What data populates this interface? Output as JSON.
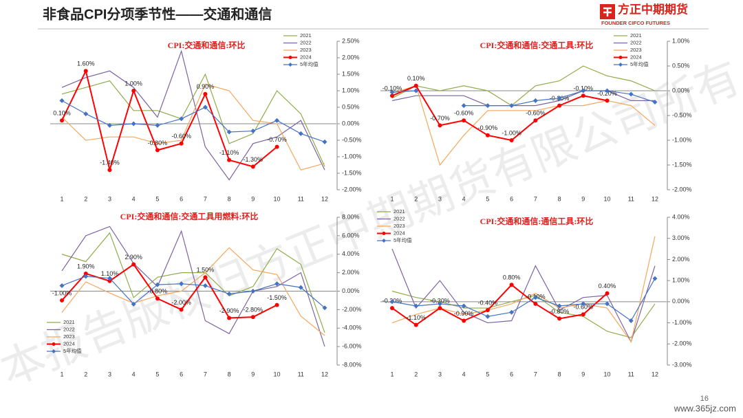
{
  "header": {
    "title": "非食品CPI分项季节性——交通和通信",
    "logo": "方正中期期货",
    "logo_sub": "FOUNDER CIFCO FUTURES"
  },
  "footer": {
    "page": "16",
    "site": "www.365jz.com"
  },
  "watermark": "本报告版权归方正中期期货有限公司所有",
  "chart_data": [
    {
      "type": "line",
      "title": "CPI:交通和通信:环比",
      "categories": [
        "1",
        "2",
        "3",
        "4",
        "5",
        "6",
        "7",
        "8",
        "9",
        "10",
        "11",
        "12"
      ],
      "ylim": [
        -2,
        2.5
      ],
      "yticks": [
        {
          "value": -2,
          "label": "-2.00%"
        },
        {
          "value": -1.5,
          "label": "-1.50%"
        },
        {
          "value": -1,
          "label": "-1.00%"
        },
        {
          "value": -0.5,
          "label": "-0.50%"
        },
        {
          "value": 0,
          "label": "0.00%"
        },
        {
          "value": 0.5,
          "label": "0.50%"
        },
        {
          "value": 1,
          "label": "1.00%"
        },
        {
          "value": 1.5,
          "label": "1.50%"
        },
        {
          "value": 2,
          "label": "2.00%"
        },
        {
          "value": 2.5,
          "label": "2.50%"
        }
      ],
      "legend": "upper right",
      "grid": false,
      "series": [
        {
          "name": "2021",
          "color": "#8fac4a",
          "values": [
            0.9,
            1.1,
            1.3,
            0.4,
            0.4,
            0.15,
            1.5,
            -0.6,
            -0.3,
            1.0,
            0.3,
            -1.3
          ]
        },
        {
          "name": "2022",
          "color": "#7b62a3",
          "values": [
            1.1,
            1.4,
            1.6,
            1.1,
            0.2,
            2.2,
            -0.7,
            -1.7,
            -0.6,
            -0.4,
            0.1,
            -1.4
          ]
        },
        {
          "name": "2023",
          "color": "#f5a65b",
          "values": [
            0.2,
            -0.5,
            -0.4,
            -0.4,
            -0.6,
            -0.5,
            1.2,
            1.0,
            0.1,
            0.0,
            -1.4,
            -1.2
          ]
        },
        {
          "name": "2024",
          "color": "#ff0000",
          "marker": "circle",
          "values": [
            0.1,
            1.6,
            -1.4,
            1.0,
            -0.8,
            -0.6,
            0.9,
            -1.1,
            -1.3,
            -0.7,
            null,
            null
          ],
          "value_labels": [
            "0.10%",
            "1.60%",
            "-1.40%",
            "1.00%",
            "-0.80%",
            "-0.60%",
            "0.90%",
            "-1.10%",
            "-1.30%",
            "-0.70%",
            null,
            null
          ]
        },
        {
          "name": "5年均值",
          "color": "#4472c4",
          "marker": "diamond",
          "values": [
            0.7,
            0.3,
            -0.05,
            0.0,
            -0.05,
            0.15,
            0.5,
            -0.25,
            -0.22,
            0.1,
            -0.3,
            -0.55
          ]
        }
      ]
    },
    {
      "type": "line",
      "title": "CPI:交通和通信:交通工具:环比",
      "categories": [
        "1",
        "2",
        "3",
        "4",
        "5",
        "6",
        "7",
        "8",
        "9",
        "10",
        "11",
        "12"
      ],
      "ylim": [
        -2,
        1
      ],
      "yticks": [
        {
          "value": -2,
          "label": "-2.00%"
        },
        {
          "value": -1.5,
          "label": "-1.50%"
        },
        {
          "value": -1,
          "label": "-1.00%"
        },
        {
          "value": -0.5,
          "label": "-0.50%"
        },
        {
          "value": 0,
          "label": "0.00%"
        },
        {
          "value": 0.5,
          "label": "0.50%"
        },
        {
          "value": 1,
          "label": "1.00%"
        }
      ],
      "legend": "upper right",
      "grid": false,
      "series": [
        {
          "name": "2021",
          "color": "#8fac4a",
          "values": [
            -0.15,
            0.1,
            0.0,
            0.1,
            0.0,
            -0.3,
            0.1,
            0.2,
            0.5,
            0.3,
            0.2,
            0.0
          ]
        },
        {
          "name": "2022",
          "color": "#7b62a3",
          "values": [
            -0.2,
            -0.1,
            -0.1,
            -0.1,
            -0.3,
            -0.3,
            -0.3,
            -0.2,
            0.0,
            0.0,
            -0.2,
            -0.2
          ]
        },
        {
          "name": "2023",
          "color": "#f5a65b",
          "values": [
            -0.05,
            0.1,
            -1.5,
            -0.9,
            -0.4,
            -0.4,
            -0.4,
            -0.3,
            -0.3,
            -0.2,
            -0.3,
            -0.7
          ]
        },
        {
          "name": "2024",
          "color": "#ff0000",
          "marker": "circle",
          "values": [
            -0.1,
            0.1,
            -0.7,
            -0.6,
            -0.9,
            -1.0,
            -0.6,
            -0.3,
            -0.1,
            -0.2,
            null,
            null
          ],
          "value_labels": [
            "-0.10%",
            "0.10%",
            "-0.70%",
            "-0.60%",
            "-0.90%",
            "-1.00%",
            "-0.60%",
            "-0.30%",
            "-0.10%",
            "-0.20%",
            null,
            null
          ]
        },
        {
          "name": "5年均值",
          "color": "#4472c4",
          "marker": "diamond",
          "values": [
            -0.03,
            0.0,
            null,
            -0.3,
            -0.3,
            -0.3,
            -0.2,
            -0.15,
            0.0,
            0.0,
            -0.07,
            -0.23
          ]
        }
      ]
    },
    {
      "type": "line",
      "title": "CPI:交通和通信:交通工具用燃料:环比",
      "categories": [
        "1",
        "2",
        "3",
        "4",
        "5",
        "6",
        "7",
        "8",
        "9",
        "10",
        "11",
        "12"
      ],
      "ylim": [
        -8,
        8
      ],
      "yticks": [
        {
          "value": -8,
          "label": "-8.00%"
        },
        {
          "value": -6,
          "label": "-6.00%"
        },
        {
          "value": -4,
          "label": "-4.00%"
        },
        {
          "value": -2,
          "label": "-2.00%"
        },
        {
          "value": 0,
          "label": "0.00%"
        },
        {
          "value": 2,
          "label": "2.00%"
        },
        {
          "value": 4,
          "label": "4.00%"
        },
        {
          "value": 6,
          "label": "6.00%"
        },
        {
          "value": 8,
          "label": "8.00%"
        }
      ],
      "legend": "lower left",
      "grid": false,
      "series": [
        {
          "name": "2021",
          "color": "#8fac4a",
          "values": [
            4.0,
            3.2,
            6.3,
            -0.7,
            1.5,
            2.0,
            2.0,
            -0.5,
            0.5,
            4.6,
            2.9,
            -4.5
          ]
        },
        {
          "name": "2022",
          "color": "#7b62a3",
          "values": [
            2.2,
            6.0,
            7.0,
            3.0,
            0.5,
            6.5,
            -3.2,
            -4.6,
            0.0,
            0.5,
            2.0,
            -6.0
          ]
        },
        {
          "name": "2023",
          "color": "#f5a65b",
          "values": [
            -2.3,
            1.0,
            -0.2,
            -1.3,
            -0.5,
            0.0,
            2.0,
            4.7,
            2.3,
            1.8,
            -2.7,
            -4.8
          ]
        },
        {
          "name": "2024",
          "color": "#ff0000",
          "marker": "circle",
          "values": [
            -1.0,
            1.9,
            1.1,
            2.9,
            -0.8,
            -2.0,
            1.5,
            -2.9,
            -2.8,
            -1.5,
            null,
            null
          ],
          "value_labels": [
            "-1.00%",
            "1.90%",
            "1.10%",
            "2.90%",
            "-0.80%",
            "-2.00%",
            "1.50%",
            "-2.90%",
            "-2.80%",
            "-1.50%",
            null,
            null
          ]
        },
        {
          "name": "5年均值",
          "color": "#4472c4",
          "marker": "diamond",
          "values": [
            0.6,
            1.6,
            1.4,
            -1.4,
            0.7,
            0.8,
            0.6,
            -0.3,
            0.0,
            0.8,
            0.4,
            -1.8
          ]
        }
      ]
    },
    {
      "type": "line",
      "title": "CPI:交通和通信:通信工具:环比",
      "categories": [
        "1",
        "2",
        "3",
        "4",
        "5",
        "6",
        "7",
        "8",
        "9",
        "10",
        "11",
        "12"
      ],
      "ylim": [
        -3,
        4
      ],
      "yticks": [
        {
          "value": -3,
          "label": "-3.00%"
        },
        {
          "value": -2,
          "label": "-2.00%"
        },
        {
          "value": -1,
          "label": "-1.00%"
        },
        {
          "value": 0,
          "label": "0.00%"
        },
        {
          "value": 1,
          "label": "1.00%"
        },
        {
          "value": 2,
          "label": "2.00%"
        },
        {
          "value": 3,
          "label": "3.00%"
        },
        {
          "value": 4,
          "label": "4.00%"
        }
      ],
      "legend": "upper left",
      "grid": false,
      "series": [
        {
          "name": "2021",
          "color": "#8fac4a",
          "values": [
            0.5,
            0.2,
            0.0,
            -0.3,
            -0.3,
            0.0,
            0.3,
            -0.5,
            -0.7,
            -1.4,
            -1.7,
            -0.1
          ]
        },
        {
          "name": "2022",
          "color": "#7b62a3",
          "values": [
            2.5,
            -0.3,
            1.0,
            -0.5,
            -1.0,
            -0.9,
            1.7,
            -0.4,
            0.2,
            0.3,
            -1.9,
            1.7
          ]
        },
        {
          "name": "2023",
          "color": "#f5a65b",
          "values": [
            -1.0,
            -0.6,
            -0.3,
            -0.6,
            -0.4,
            -0.1,
            0.4,
            -0.3,
            -0.1,
            -0.3,
            -1.9,
            3.1
          ]
        },
        {
          "name": "2024",
          "color": "#ff0000",
          "marker": "circle",
          "values": [
            -0.3,
            -1.1,
            -0.3,
            -0.9,
            -0.4,
            0.8,
            -0.1,
            -0.8,
            -0.6,
            0.4,
            null,
            null
          ],
          "value_labels": [
            "-0.30%",
            "-1.10%",
            "-0.30%",
            "-0.90%",
            "-0.40%",
            "0.80%",
            "-0.10%",
            "-0.80%",
            "-0.60%",
            "0.40%",
            null,
            null
          ]
        },
        {
          "name": "5年均值",
          "color": "#4472c4",
          "marker": "diamond",
          "values": [
            0.0,
            -0.2,
            -0.1,
            -0.2,
            -0.7,
            -0.5,
            0.2,
            -0.2,
            -0.1,
            -0.1,
            -0.9,
            1.1
          ]
        }
      ]
    }
  ]
}
